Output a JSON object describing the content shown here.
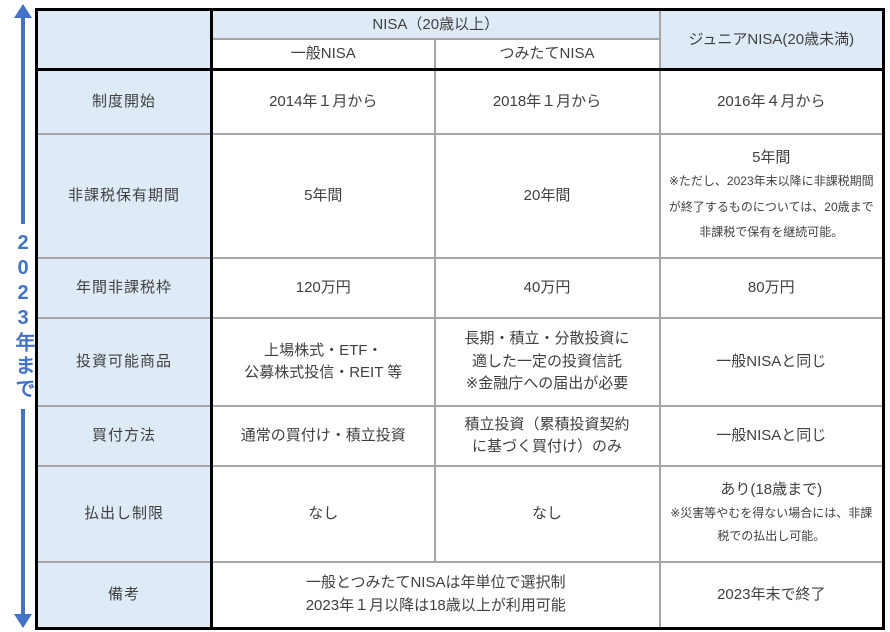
{
  "timeline": {
    "label": "2023年まで"
  },
  "colors": {
    "accent_blue": "#4472C4",
    "cell_blue": "#DEEBF7",
    "grid_gray": "#A6A6A6",
    "border_black": "#000000",
    "text": "#404040"
  },
  "table": {
    "header": {
      "nisa_group": "NISA（20歳以上）",
      "general": "一般NISA",
      "tsumitate": "つみたてNISA",
      "junior": "ジュニアNISA(20歳未満)"
    },
    "rows": {
      "seido": {
        "label": "制度開始",
        "general": "2014年１月から",
        "tsumitate": "2018年１月から",
        "junior": "2016年４月から"
      },
      "kikan": {
        "label": "非課税保有期間",
        "general": "5年間",
        "tsumitate": "20年間",
        "junior_main": "5年間",
        "junior_note": "※ただし、2023年末以降に非課税期間が終了するものについては、20歳まで非課税で保有を継続可能。"
      },
      "waku": {
        "label": "年間非課税枠",
        "general": "120万円",
        "tsumitate": "40万円",
        "junior": "80万円"
      },
      "shohin": {
        "label": "投資可能商品",
        "general_line1": "上場株式・ETF・",
        "general_line2": "公募株式投信・REIT 等",
        "tsumitate_line1": "長期・積立・分散投資に",
        "tsumitate_line2": "適した一定の投資信託",
        "tsumitate_line3": "※金融庁への届出が必要",
        "junior": "一般NISAと同じ"
      },
      "kaitsuke": {
        "label": "買付方法",
        "general": "通常の買付け・積立投資",
        "tsumitate_line1": "積立投資（累積投資契約",
        "tsumitate_line2": "に基づく買付け）のみ",
        "junior": "一般NISAと同じ"
      },
      "haraidashi": {
        "label": "払出し制限",
        "general": "なし",
        "tsumitate": "なし",
        "junior_main": "あり(18歳まで)",
        "junior_note": "※災害等やむを得ない場合には、非課税での払出し可能。"
      },
      "biko": {
        "label": "備考",
        "merged_line1": "一般とつみたてNISAは年単位で選択制",
        "merged_line2": "2023年１月以降は18歳以上が利用可能",
        "junior": "2023年末で終了"
      }
    }
  }
}
